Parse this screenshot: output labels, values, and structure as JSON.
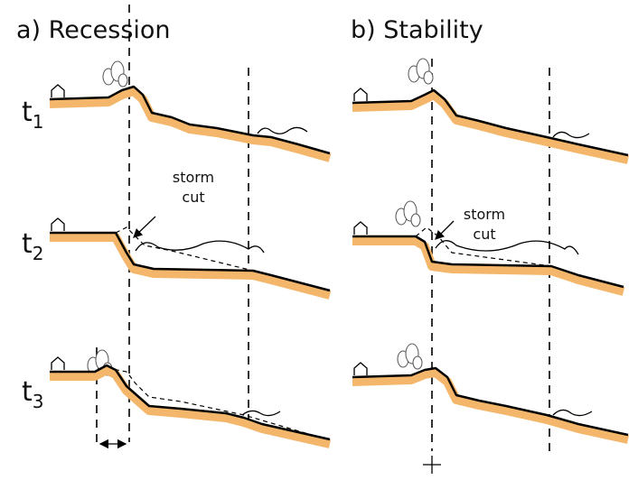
{
  "panels": [
    {
      "title": "a) Recession",
      "annotation": [
        "storm",
        "cut"
      ]
    },
    {
      "title": "b) Stability",
      "annotation": [
        "storm",
        "cut"
      ]
    }
  ],
  "time_labels": [
    {
      "base": "t",
      "sub": "1"
    },
    {
      "base": "t",
      "sub": "2"
    },
    {
      "base": "t",
      "sub": "3"
    }
  ]
}
